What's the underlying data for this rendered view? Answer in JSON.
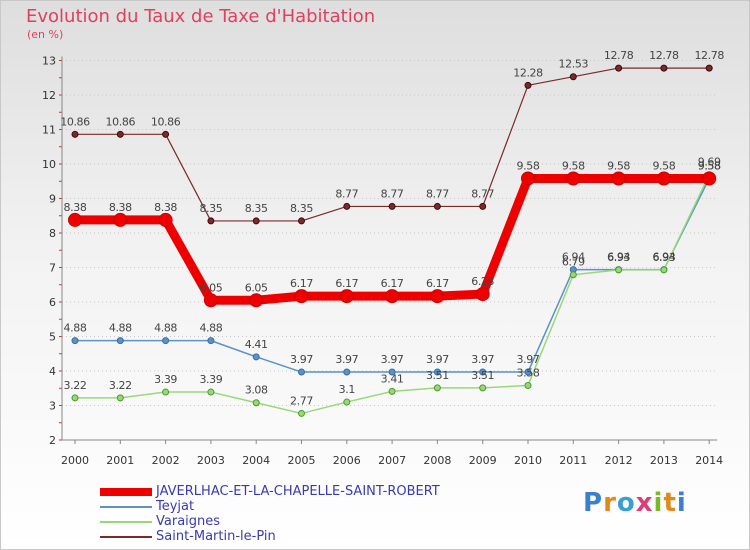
{
  "header": {
    "title": "Evolution du Taux de Taxe d'Habitation",
    "unit": "(en %)"
  },
  "logo": {
    "text": "Proxiti"
  },
  "chart_data": {
    "type": "line",
    "title": "Evolution du Taux de Taxe d'Habitation",
    "ylabel": "(en %)",
    "xlabel": "",
    "ylim": [
      2,
      13
    ],
    "yticks": [
      "2",
      "3",
      "4",
      "5",
      "6",
      "7",
      "8",
      "9",
      "10",
      "11",
      "12",
      "13"
    ],
    "x": [
      "2000",
      "2001",
      "2002",
      "2003",
      "2004",
      "2005",
      "2006",
      "2007",
      "2008",
      "2009",
      "2010",
      "2011",
      "2012",
      "2013",
      "2014"
    ],
    "series": [
      {
        "name": "JAVERLHAC-ET-LA-CHAPELLE-SAINT-ROBERT",
        "color": "#ee0000",
        "values": [
          8.38,
          8.38,
          8.38,
          6.05,
          6.05,
          6.17,
          6.17,
          6.17,
          6.17,
          6.23,
          9.58,
          9.58,
          9.58,
          9.58,
          9.58
        ],
        "labels": [
          "8.38",
          "8.38",
          "8.38",
          "6.05",
          "6.05",
          "6.17",
          "6.17",
          "6.17",
          "6.17",
          "6.23",
          "9.58",
          "9.58",
          "9.58",
          "9.58",
          "9.58"
        ]
      },
      {
        "name": "Teyjat",
        "color": "#5b92c8",
        "values": [
          4.88,
          4.88,
          4.88,
          4.88,
          4.41,
          3.97,
          3.97,
          3.97,
          3.97,
          3.97,
          3.97,
          6.94,
          6.94,
          6.94,
          9.58
        ],
        "labels": [
          "4.88",
          "4.88",
          "4.88",
          "4.88",
          "4.41",
          "3.97",
          "3.97",
          "3.97",
          "3.97",
          "3.97",
          "3.97",
          "6.94",
          "6.94",
          "6.94",
          "9.58"
        ]
      },
      {
        "name": "Varaignes",
        "color": "#99d87a",
        "values": [
          3.22,
          3.22,
          3.39,
          3.39,
          3.08,
          2.77,
          3.1,
          3.41,
          3.51,
          3.51,
          3.58,
          6.79,
          6.93,
          6.93,
          9.69
        ],
        "labels": [
          "3.22",
          "3.22",
          "3.39",
          "3.39",
          "3.08",
          "2.77",
          "3.1",
          "3.41",
          "3.51",
          "3.51",
          "3.58",
          "6.79",
          "6.93",
          "6.93",
          "9.69"
        ]
      },
      {
        "name": "Saint-Martin-le-Pin",
        "color": "#7a2a2a",
        "values": [
          10.86,
          10.86,
          10.86,
          8.35,
          8.35,
          8.35,
          8.77,
          8.77,
          8.77,
          8.77,
          12.28,
          12.53,
          12.78,
          12.78,
          12.78
        ],
        "labels": [
          "10.86",
          "10.86",
          "10.86",
          "8.35",
          "8.35",
          "8.35",
          "8.77",
          "8.77",
          "8.77",
          "8.77",
          "12.28",
          "12.53",
          "12.78",
          "12.78",
          "12.78"
        ]
      }
    ]
  }
}
